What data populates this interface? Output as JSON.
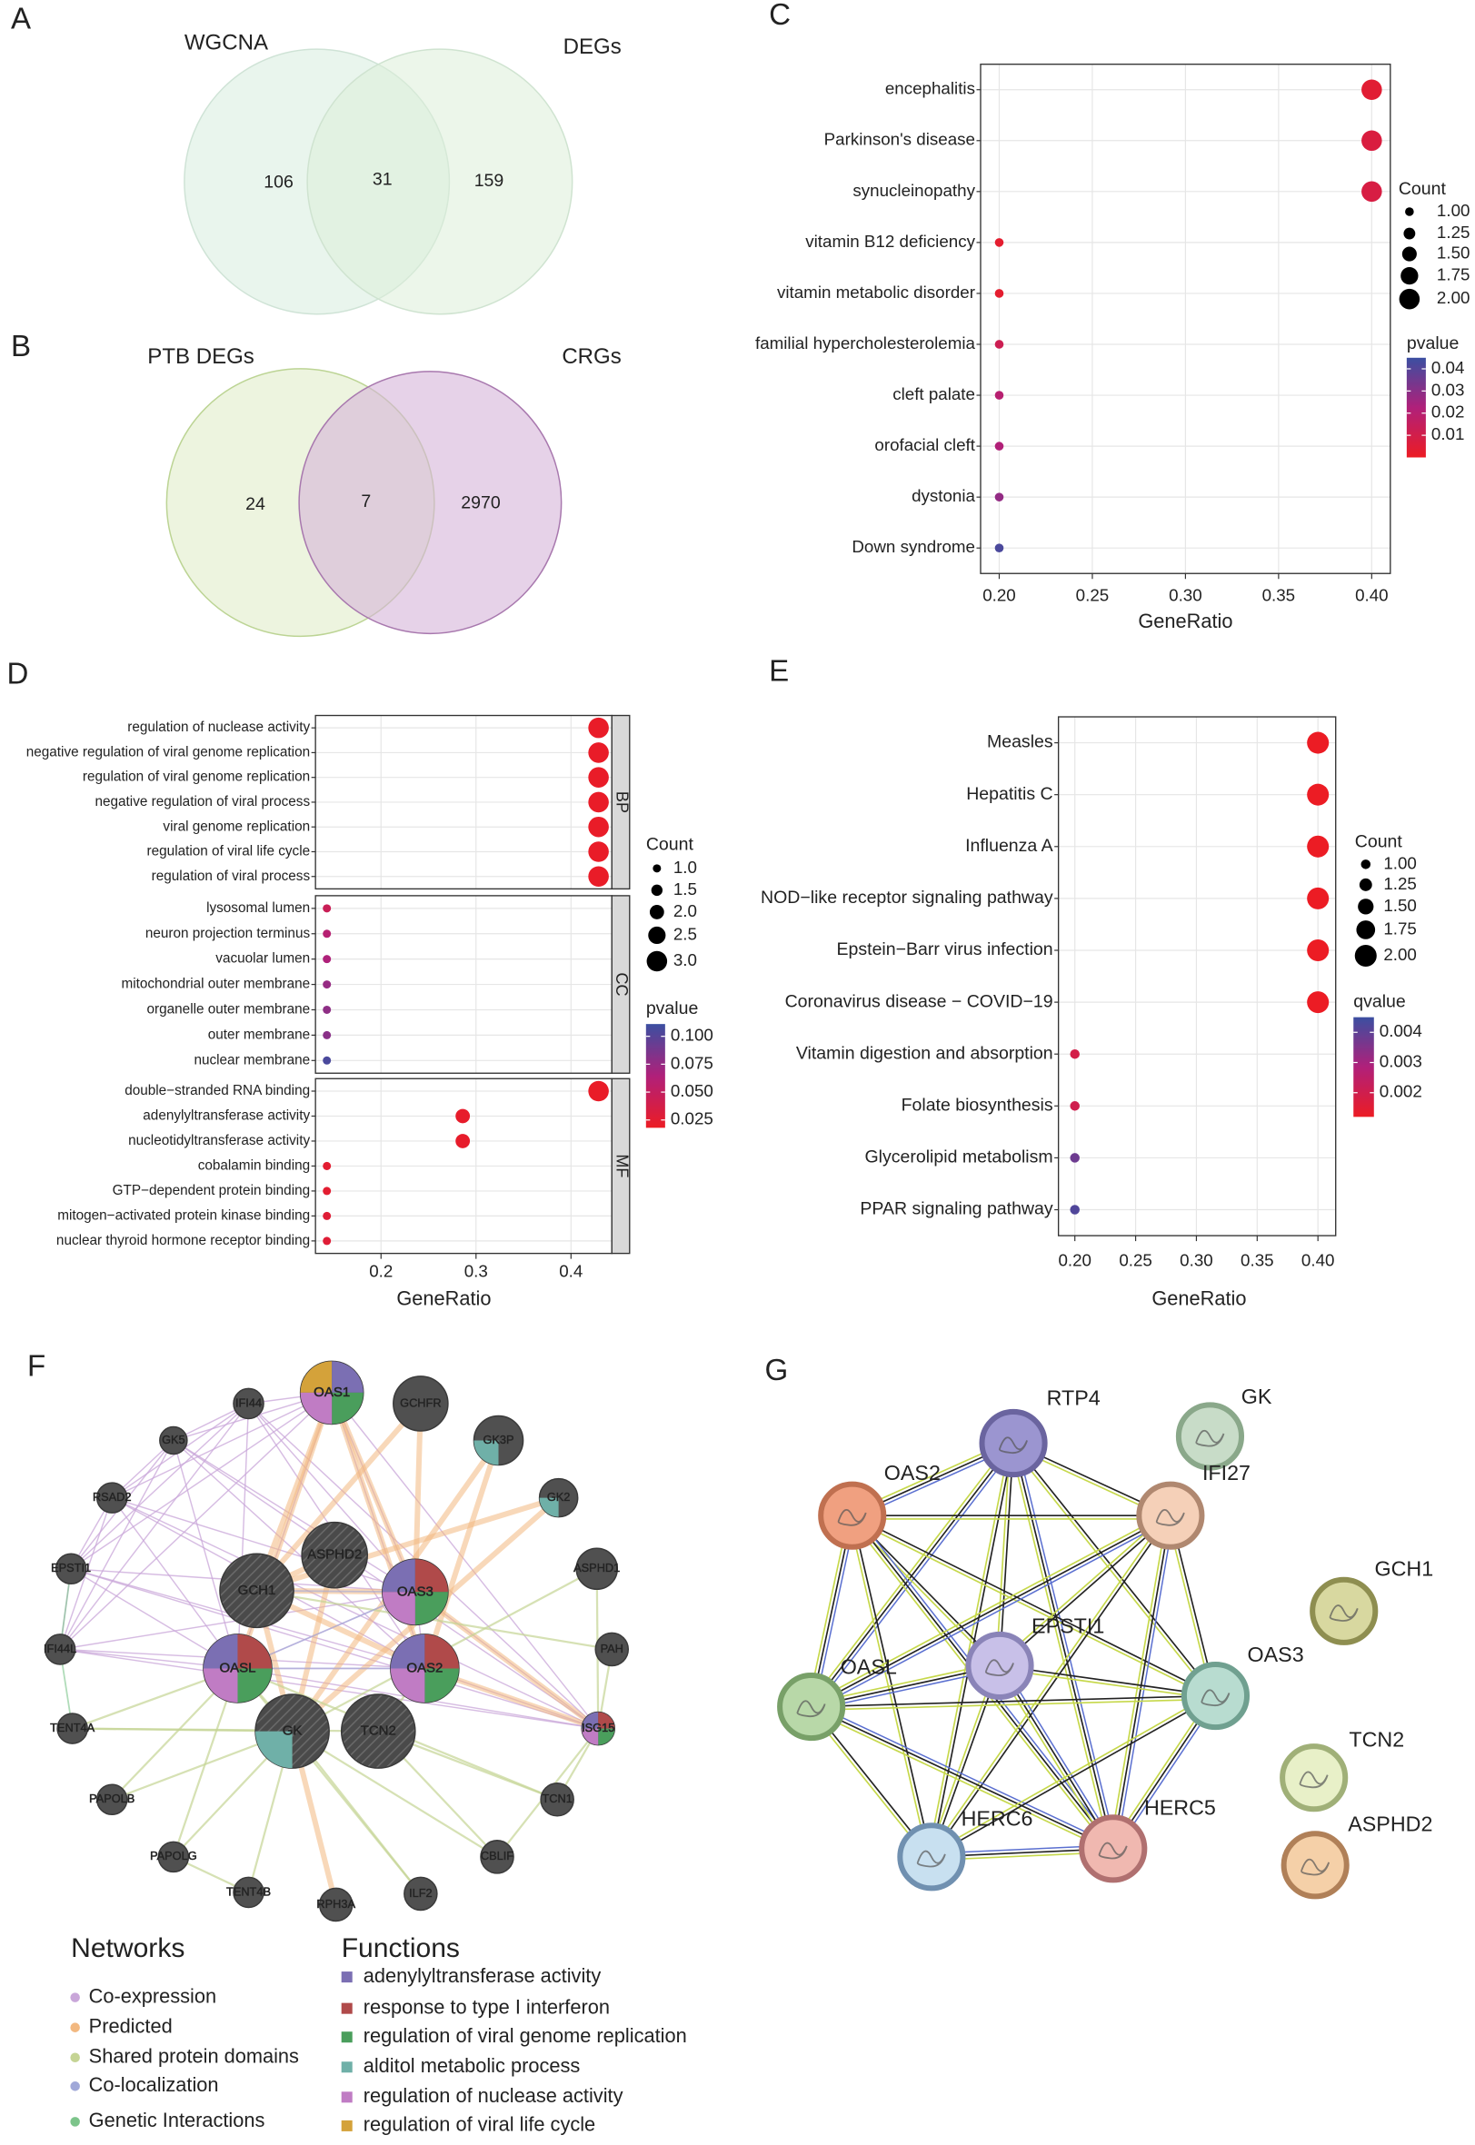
{
  "panel_labels": [
    "A",
    "B",
    "C",
    "D",
    "E",
    "F",
    "G"
  ],
  "venn_a": {
    "sets": [
      "WGCNA",
      "DEGs"
    ],
    "counts": [
      106,
      31,
      159
    ]
  },
  "venn_b": {
    "sets": [
      "PTB DEGs",
      "CRGs"
    ],
    "counts": [
      24,
      7,
      2970
    ]
  },
  "chart_data": [
    {
      "type": "dot",
      "categories": [
        "encephalitis",
        "Parkinson's disease",
        "synucleinopathy",
        "vitamin B12 deficiency",
        "vitamin metabolic disorder",
        "familial hypercholesterolemia",
        "cleft palate",
        "orofacial cleft",
        "dystonia",
        "Down syndrome"
      ],
      "values": [
        0.4,
        0.4,
        0.4,
        0.2,
        0.2,
        0.2,
        0.2,
        0.2,
        0.2,
        0.2
      ],
      "count": [
        2,
        2,
        2,
        1,
        1,
        1,
        1,
        1,
        1,
        1
      ],
      "pvalue": [
        0.004,
        0.007,
        0.008,
        0.003,
        0.003,
        0.012,
        0.02,
        0.022,
        0.028,
        0.042
      ],
      "xlabel": "GeneRatio",
      "xlim": [
        0.19,
        0.41
      ],
      "xticks": [
        {
          "value": 0.2,
          "label": "0.20"
        },
        0.25,
        {
          "value": 0.3,
          "label": "0.30"
        },
        0.35,
        {
          "value": 0.4,
          "label": "0.40"
        }
      ],
      "grid": true,
      "size_legend": {
        "title": "Count",
        "ticks": [
          {
            "value": 1,
            "label": "1.00"
          },
          1.25,
          {
            "value": 1.5,
            "label": "1.50"
          },
          1.75,
          {
            "value": 2,
            "label": "2.00"
          }
        ]
      },
      "colorbar": {
        "title": "pvalue",
        "range": [
          0,
          0.045
        ],
        "ticks": [
          0.04,
          0.03,
          0.02,
          0.01
        ],
        "colors": [
          "#ec1c24",
          "#b0207a",
          "#3b4fa1"
        ]
      }
    },
    {
      "type": "dot",
      "facets": [
        {
          "name": "BP",
          "categories": [
            "regulation of nuclease activity",
            "negative regulation of viral genome replication",
            "regulation of viral genome replication",
            "negative regulation of viral process",
            "viral genome replication",
            "regulation of viral life cycle",
            "regulation of viral process"
          ],
          "values": [
            0.429,
            0.429,
            0.429,
            0.429,
            0.429,
            0.429,
            0.429
          ],
          "count": [
            3,
            3,
            3,
            3,
            3,
            3,
            3
          ],
          "pvalue": [
            0.02,
            0.02,
            0.02,
            0.02,
            0.02,
            0.02,
            0.02
          ]
        },
        {
          "name": "CC",
          "categories": [
            "lysosomal lumen",
            "neuron projection terminus",
            "vacuolar lumen",
            "mitochondrial outer membrane",
            "organelle outer membrane",
            "outer membrane",
            "nuclear membrane"
          ],
          "values": [
            0.143,
            0.143,
            0.143,
            0.143,
            0.143,
            0.143,
            0.143
          ],
          "count": [
            1,
            1,
            1,
            1,
            1,
            1,
            1
          ],
          "pvalue": [
            0.045,
            0.06,
            0.065,
            0.075,
            0.078,
            0.08,
            0.105
          ]
        },
        {
          "name": "MF",
          "categories": [
            "double−stranded RNA binding",
            "adenylyltransferase activity",
            "nucleotidyltransferase activity",
            "cobalamin binding",
            "GTP−dependent protein binding",
            "mitogen−activated protein kinase binding",
            "nuclear thyroid hormone receptor binding"
          ],
          "values": [
            0.429,
            0.286,
            0.286,
            0.143,
            0.143,
            0.143,
            0.143
          ],
          "count": [
            3,
            2,
            2,
            1,
            1,
            1,
            1
          ],
          "pvalue": [
            0.02,
            0.022,
            0.022,
            0.025,
            0.025,
            0.028,
            0.028
          ]
        }
      ],
      "xlabel": "GeneRatio",
      "xlim": [
        0.131,
        0.443
      ],
      "xticks": [
        0.2,
        0.3,
        0.4
      ],
      "grid": true,
      "size_legend": {
        "title": "Count",
        "ticks": [
          {
            "value": 1,
            "label": "1.0"
          },
          1.5,
          {
            "value": 2,
            "label": "2.0"
          },
          2.5,
          {
            "value": 3,
            "label": "3.0"
          }
        ]
      },
      "colorbar": {
        "title": "pvalue",
        "range": [
          0.018,
          0.111
        ],
        "ticks": [
          {
            "value": 0.1,
            "label": "0.100"
          },
          0.075,
          {
            "value": 0.05,
            "label": "0.050"
          },
          0.025
        ],
        "colors": [
          "#ec1c24",
          "#b0207a",
          "#3b4fa1"
        ]
      }
    },
    {
      "type": "dot",
      "categories": [
        "Measles",
        "Hepatitis C",
        "Influenza A",
        "NOD−like receptor signaling pathway",
        "Epstein−Barr virus infection",
        "Coronavirus disease − COVID−19",
        "Vitamin digestion and absorption",
        "Folate biosynthesis",
        "Glycerolipid metabolism",
        "PPAR signaling pathway"
      ],
      "values": [
        0.4,
        0.4,
        0.4,
        0.4,
        0.4,
        0.4,
        0.2,
        0.2,
        0.2,
        0.2
      ],
      "count": [
        2,
        2,
        2,
        2,
        2,
        2,
        1,
        1,
        1,
        1
      ],
      "qvalue": [
        0.0012,
        0.0012,
        0.0012,
        0.0012,
        0.0012,
        0.0012,
        0.0019,
        0.002,
        0.0038,
        0.0042
      ],
      "xlabel": "GeneRatio",
      "xlim": [
        0.1865,
        0.4146
      ],
      "xticks": [
        {
          "value": 0.2,
          "label": "0.20"
        },
        0.25,
        {
          "value": 0.3,
          "label": "0.30"
        },
        0.35,
        {
          "value": 0.4,
          "label": "0.40"
        }
      ],
      "grid": true,
      "size_legend": {
        "title": "Count",
        "ticks": [
          {
            "value": 1,
            "label": "1.00"
          },
          1.25,
          {
            "value": 1.5,
            "label": "1.50"
          },
          1.75,
          {
            "value": 2,
            "label": "2.00"
          }
        ]
      },
      "colorbar": {
        "title": "qvalue",
        "range": [
          0.0012,
          0.0045
        ],
        "ticks": [
          0.004,
          0.003,
          0.002
        ],
        "colors": [
          "#ec1c24",
          "#b0207a",
          "#3b4fa1"
        ]
      }
    }
  ],
  "network_f": {
    "nodes": [
      "OAS1",
      "GCHFR",
      "IFI44",
      "GK5",
      "GK3P",
      "RSAD2",
      "GK2",
      "ASPHD2",
      "ASPHD1",
      "EPSTI1",
      "GCH1",
      "OAS3",
      "IFI44L",
      "PAH",
      "OASL",
      "OAS2",
      "TENT4A",
      "GK",
      "TCN2",
      "ISG15",
      "PAPOLB",
      "TCN1",
      "PAPOLG",
      "CBLIF",
      "TENT4B",
      "RPH3A",
      "ILF2"
    ],
    "networks_title": "Networks",
    "networks": [
      {
        "name": "Co-expression",
        "color": "#c9a6d9"
      },
      {
        "name": "Predicted",
        "color": "#f2b880"
      },
      {
        "name": "Shared protein domains",
        "color": "#c5d494"
      },
      {
        "name": "Co-localization",
        "color": "#a0a8d8"
      },
      {
        "name": "Genetic Interactions",
        "color": "#7cc48a"
      }
    ],
    "functions_title": "Functions",
    "functions": [
      {
        "name": "adenylyltransferase activity",
        "color": "#7b6fb3"
      },
      {
        "name": "response to type I interferon",
        "color": "#b04a4a"
      },
      {
        "name": "regulation of viral genome replication",
        "color": "#4a9e5c"
      },
      {
        "name": "alditol metabolic process",
        "color": "#6fb0a8"
      },
      {
        "name": "regulation of nuclease activity",
        "color": "#c07cc4"
      },
      {
        "name": "regulation of viral life cycle",
        "color": "#d4a23a"
      }
    ]
  },
  "network_g": {
    "nodes": [
      "RTP4",
      "GK",
      "OAS2",
      "IFI27",
      "GCH1",
      "EPSTI1",
      "OASL",
      "OAS3",
      "TCN2",
      "HERC6",
      "HERC5",
      "ASPHD2"
    ]
  }
}
